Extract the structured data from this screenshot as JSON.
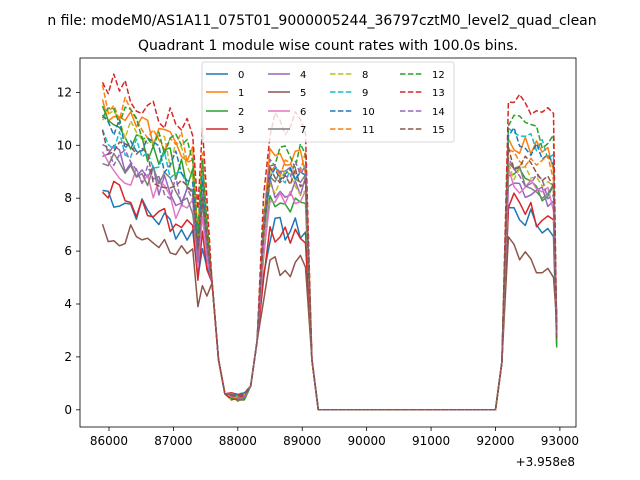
{
  "figure": {
    "suptitle": "n file: modeM0/AS1A11_075T01_9000005244_36797cztM0_level2_quad_clean",
    "title": "Quadrant 1 module wise count rates with 100.0s bins.",
    "x_offset_label": "+3.958e8"
  },
  "chart_data": {
    "type": "line",
    "title": "Quadrant 1 module wise count rates with 100.0s bins.",
    "xlabel": "",
    "ylabel": "",
    "x_offset": 395800000,
    "x_offset_label": "+3.958e8",
    "xlim": [
      85550,
      93250
    ],
    "ylim": [
      -0.65,
      13.3
    ],
    "xticks": [
      86000,
      87000,
      88000,
      89000,
      90000,
      91000,
      92000,
      93000
    ],
    "xtick_labels": [
      "86000",
      "87000",
      "88000",
      "89000",
      "90000",
      "91000",
      "92000",
      "93000"
    ],
    "yticks": [
      0,
      2,
      4,
      6,
      8,
      10,
      12
    ],
    "ytick_labels": [
      "0",
      "2",
      "4",
      "6",
      "8",
      "10",
      "12"
    ],
    "legend": {
      "placement": "top-center",
      "columns": 4
    },
    "series": [
      {
        "name": "0",
        "color": "#1f77b4",
        "dash": "solid",
        "level1": 8.3,
        "level1_trend": -1.7,
        "drop1": 6.0,
        "level2": 6.8,
        "level3": 7.6
      },
      {
        "name": "1",
        "color": "#ff7f0e",
        "dash": "solid",
        "level1": 11.5,
        "level1_trend": -1.8,
        "drop1": 7.0,
        "level2": 9.4,
        "level3": 10.3
      },
      {
        "name": "2",
        "color": "#2ca02c",
        "dash": "solid",
        "level1": 11.0,
        "level1_trend": -2.2,
        "drop1": 6.5,
        "level2": 7.7,
        "level3": 9.0
      },
      {
        "name": "3",
        "color": "#d62728",
        "dash": "solid",
        "level1": 8.6,
        "level1_trend": -2.0,
        "drop1": 5.9,
        "level2": 6.6,
        "level3": 7.9
      },
      {
        "name": "4",
        "color": "#9467bd",
        "dash": "solid",
        "level1": 9.7,
        "level1_trend": -1.8,
        "drop1": 6.3,
        "level2": 8.5,
        "level3": 8.8
      },
      {
        "name": "5",
        "color": "#8c564b",
        "dash": "solid",
        "level1": 6.9,
        "level1_trend": -1.3,
        "drop1": 4.9,
        "level2": 5.5,
        "level3": 6.1
      },
      {
        "name": "6",
        "color": "#e377c2",
        "dash": "solid",
        "level1": 9.4,
        "level1_trend": -2.0,
        "drop1": 6.4,
        "level2": 7.8,
        "level3": 8.8
      },
      {
        "name": "7",
        "color": "#7f7f7f",
        "dash": "solid",
        "level1": 9.8,
        "level1_trend": -1.9,
        "drop1": 6.8,
        "level2": 8.8,
        "level3": 9.1
      },
      {
        "name": "8",
        "color": "#bcbd22",
        "dash": "dashed",
        "level1": 11.2,
        "level1_trend": -2.0,
        "drop1": 7.6,
        "level2": 8.6,
        "level3": 9.2
      },
      {
        "name": "9",
        "color": "#17becf",
        "dash": "dashed",
        "level1": 10.6,
        "level1_trend": -2.0,
        "drop1": 7.2,
        "level2": 8.9,
        "level3": 10.6
      },
      {
        "name": "10",
        "color": "#1f77b4",
        "dash": "dashed",
        "level1": 10.9,
        "level1_trend": -2.0,
        "drop1": 7.3,
        "level2": 9.0,
        "level3": 10.4
      },
      {
        "name": "11",
        "color": "#ff7f0e",
        "dash": "dashed",
        "level1": 11.8,
        "level1_trend": -2.1,
        "drop1": 7.8,
        "level2": 9.3,
        "level3": 10.0
      },
      {
        "name": "12",
        "color": "#2ca02c",
        "dash": "dashed",
        "level1": 11.4,
        "level1_trend": -1.8,
        "drop1": 7.7,
        "level2": 9.6,
        "level3": 11.0
      },
      {
        "name": "13",
        "color": "#d62728",
        "dash": "dashed",
        "level1": 12.5,
        "level1_trend": -2.0,
        "drop1": 8.6,
        "level2": 10.8,
        "level3": 12.0
      },
      {
        "name": "14",
        "color": "#9467bd",
        "dash": "dashed",
        "level1": 9.9,
        "level1_trend": -1.9,
        "drop1": 6.6,
        "level2": 9.0,
        "level3": 9.1
      },
      {
        "name": "15",
        "color": "#8c564b",
        "dash": "dashed",
        "level1": 10.2,
        "level1_trend": -2.0,
        "drop1": 7.1,
        "level2": 8.8,
        "level3": 9.6
      }
    ],
    "segments": {
      "first_start": 85900,
      "first_dip": 87300,
      "first_end": 87600,
      "gap1_start": 87800,
      "gap1_end": 88200,
      "second_start": 88500,
      "second_end": 89050,
      "zero_start": 89250,
      "zero_end": 92000,
      "third_start": 92200,
      "third_end": 92950
    }
  }
}
